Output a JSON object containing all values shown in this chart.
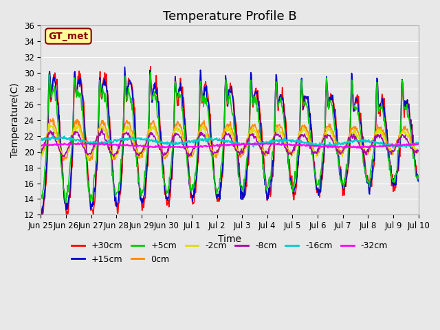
{
  "title": "Temperature Profile B",
  "xlabel": "Time",
  "ylabel": "Temperature(C)",
  "ylim": [
    12,
    36
  ],
  "yticks": [
    12,
    14,
    16,
    18,
    20,
    22,
    24,
    26,
    28,
    30,
    32,
    34,
    36
  ],
  "background_color": "#e8e8e8",
  "plot_bg_color": "#e8e8e8",
  "series": [
    {
      "label": "+30cm",
      "color": "#ff0000",
      "lw": 1.2
    },
    {
      "label": "+15cm",
      "color": "#0000cc",
      "lw": 1.2
    },
    {
      "label": "+5cm",
      "color": "#00cc00",
      "lw": 1.2
    },
    {
      "label": "0cm",
      "color": "#ff8800",
      "lw": 1.2
    },
    {
      "label": "-2cm",
      "color": "#dddd00",
      "lw": 1.2
    },
    {
      "label": "-8cm",
      "color": "#aa00aa",
      "lw": 1.2
    },
    {
      "label": "-16cm",
      "color": "#00cccc",
      "lw": 1.5
    },
    {
      "label": "-32cm",
      "color": "#ff00ff",
      "lw": 1.5
    }
  ],
  "xtick_labels": [
    "Jun 25",
    "Jun 26",
    "Jun 27",
    "Jun 28",
    "Jun 29",
    "Jun 30",
    "Jul 1",
    "Jul 2",
    "Jul 3",
    "Jul 4",
    "Jul 5",
    "Jul 6",
    "Jul 7",
    "Jul 8",
    "Jul 9",
    "Jul 10"
  ],
  "n_days": 15,
  "pts_per_day": 48,
  "annotation_text": "GT_met",
  "annotation_color": "#8B0000",
  "annotation_bg": "#ffff99",
  "title_fontsize": 13,
  "axis_label_fontsize": 10,
  "tick_fontsize": 8.5,
  "legend_fontsize": 9
}
